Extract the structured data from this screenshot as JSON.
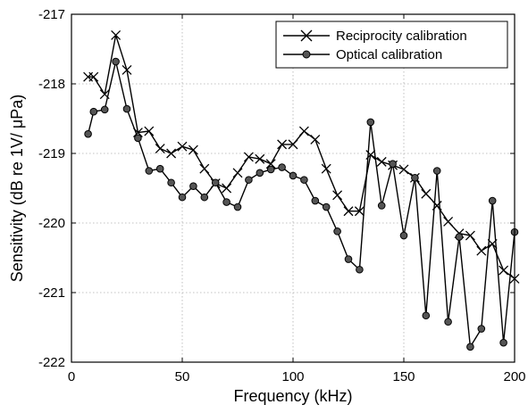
{
  "chart_data": {
    "type": "line",
    "title": "",
    "xlabel": "Frequency (kHz)",
    "ylabel": "Sensitivity (dB re 1V/ μPa)",
    "xlim": [
      0,
      200
    ],
    "ylim": [
      -222,
      -217
    ],
    "xticks": [
      0,
      50,
      100,
      150,
      200
    ],
    "xtick_labels": [
      "0",
      "50",
      "100",
      "150",
      "200"
    ],
    "yticks": [
      -222,
      -221,
      -220,
      -219,
      -218,
      -217
    ],
    "ytick_labels": [
      "-222",
      "-221",
      "-220",
      "-219",
      "-218",
      "-217"
    ],
    "grid": true,
    "legend_position": "top-right",
    "series": [
      {
        "name": "Reciprocity calibration",
        "marker": "x",
        "color": "#000000",
        "x": [
          7.5,
          10,
          15,
          20,
          25,
          30,
          35,
          40,
          45,
          50,
          55,
          60,
          65,
          70,
          75,
          80,
          85,
          90,
          95,
          100,
          105,
          110,
          115,
          120,
          125,
          130,
          135,
          140,
          145,
          150,
          155,
          160,
          165,
          170,
          175,
          180,
          185,
          190,
          195,
          200
        ],
        "y": [
          -217.9,
          -217.9,
          -218.15,
          -217.3,
          -217.8,
          -218.7,
          -218.68,
          -218.93,
          -219.0,
          -218.9,
          -218.95,
          -219.22,
          -219.43,
          -219.5,
          -219.28,
          -219.05,
          -219.08,
          -219.15,
          -218.87,
          -218.87,
          -218.68,
          -218.8,
          -219.22,
          -219.6,
          -219.83,
          -219.83,
          -219.02,
          -219.12,
          -219.17,
          -219.23,
          -219.35,
          -219.58,
          -219.75,
          -219.98,
          -220.15,
          -220.18,
          -220.4,
          -220.3,
          -220.68,
          -220.8
        ]
      },
      {
        "name": "Optical calibration",
        "marker": "o",
        "color": "#000000",
        "x": [
          7.5,
          10,
          15,
          20,
          25,
          30,
          35,
          40,
          45,
          50,
          55,
          60,
          65,
          70,
          75,
          80,
          85,
          90,
          95,
          100,
          105,
          110,
          115,
          120,
          125,
          130,
          135,
          140,
          145,
          150,
          155,
          160,
          165,
          170,
          175,
          180,
          185,
          190,
          195,
          200
        ],
        "y": [
          -218.72,
          -218.4,
          -218.37,
          -217.68,
          -218.36,
          -218.78,
          -219.25,
          -219.22,
          -219.42,
          -219.63,
          -219.47,
          -219.63,
          -219.42,
          -219.7,
          -219.77,
          -219.38,
          -219.28,
          -219.23,
          -219.2,
          -219.32,
          -219.38,
          -219.68,
          -219.77,
          -220.12,
          -220.52,
          -220.67,
          -218.55,
          -219.75,
          -219.15,
          -220.18,
          -219.35,
          -221.33,
          -219.25,
          -221.42,
          -220.2,
          -221.78,
          -221.52,
          -219.68,
          -221.72,
          -220.13
        ]
      }
    ]
  }
}
